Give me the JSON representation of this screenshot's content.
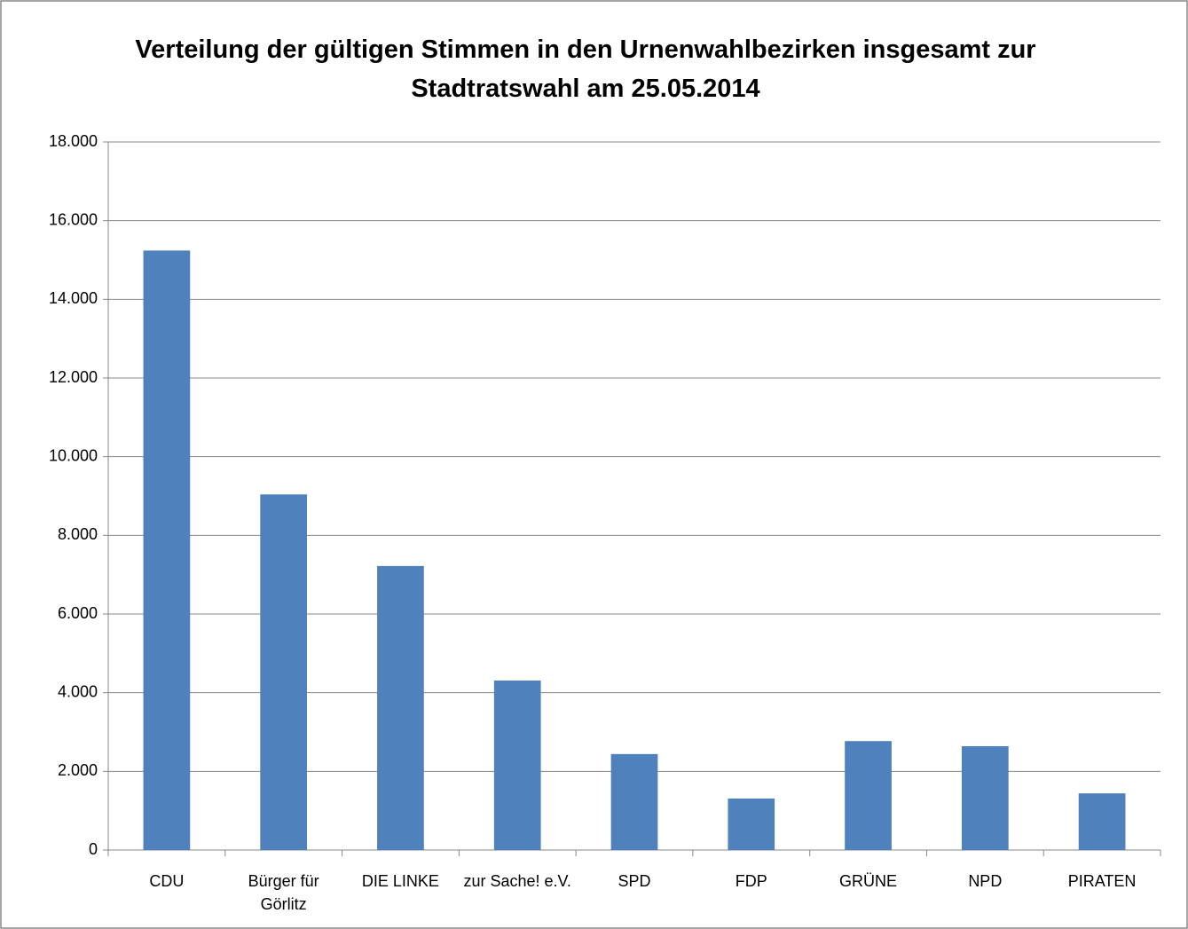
{
  "chart_data": {
    "type": "bar",
    "title": "Verteilung der gültigen Stimmen in den Urnenwahlbezirken insgesamt zur Stadtratswahl am 25.05.2014",
    "categories": [
      "CDU",
      "Bürger für Görlitz",
      "DIE LINKE",
      "zur Sache! e.V.",
      "SPD",
      "FDP",
      "GRÜNE",
      "NPD",
      "PIRATEN"
    ],
    "values": [
      15240,
      9040,
      7220,
      4310,
      2440,
      1310,
      2770,
      2640,
      1440
    ],
    "color": "#4f81bd",
    "ylim": [
      0,
      18000
    ],
    "yticks": [
      0,
      {
        "value": 2000,
        "label": "2.000"
      },
      {
        "value": 4000,
        "label": "4.000"
      },
      {
        "value": 6000,
        "label": "6.000"
      },
      {
        "value": 8000,
        "label": "8.000"
      },
      {
        "value": 10000,
        "label": "10.000"
      },
      {
        "value": 12000,
        "label": "12.000"
      },
      {
        "value": 14000,
        "label": "14.000"
      },
      {
        "value": 16000,
        "label": "16.000"
      },
      {
        "value": 18000,
        "label": "18.000"
      }
    ],
    "grid": true
  }
}
